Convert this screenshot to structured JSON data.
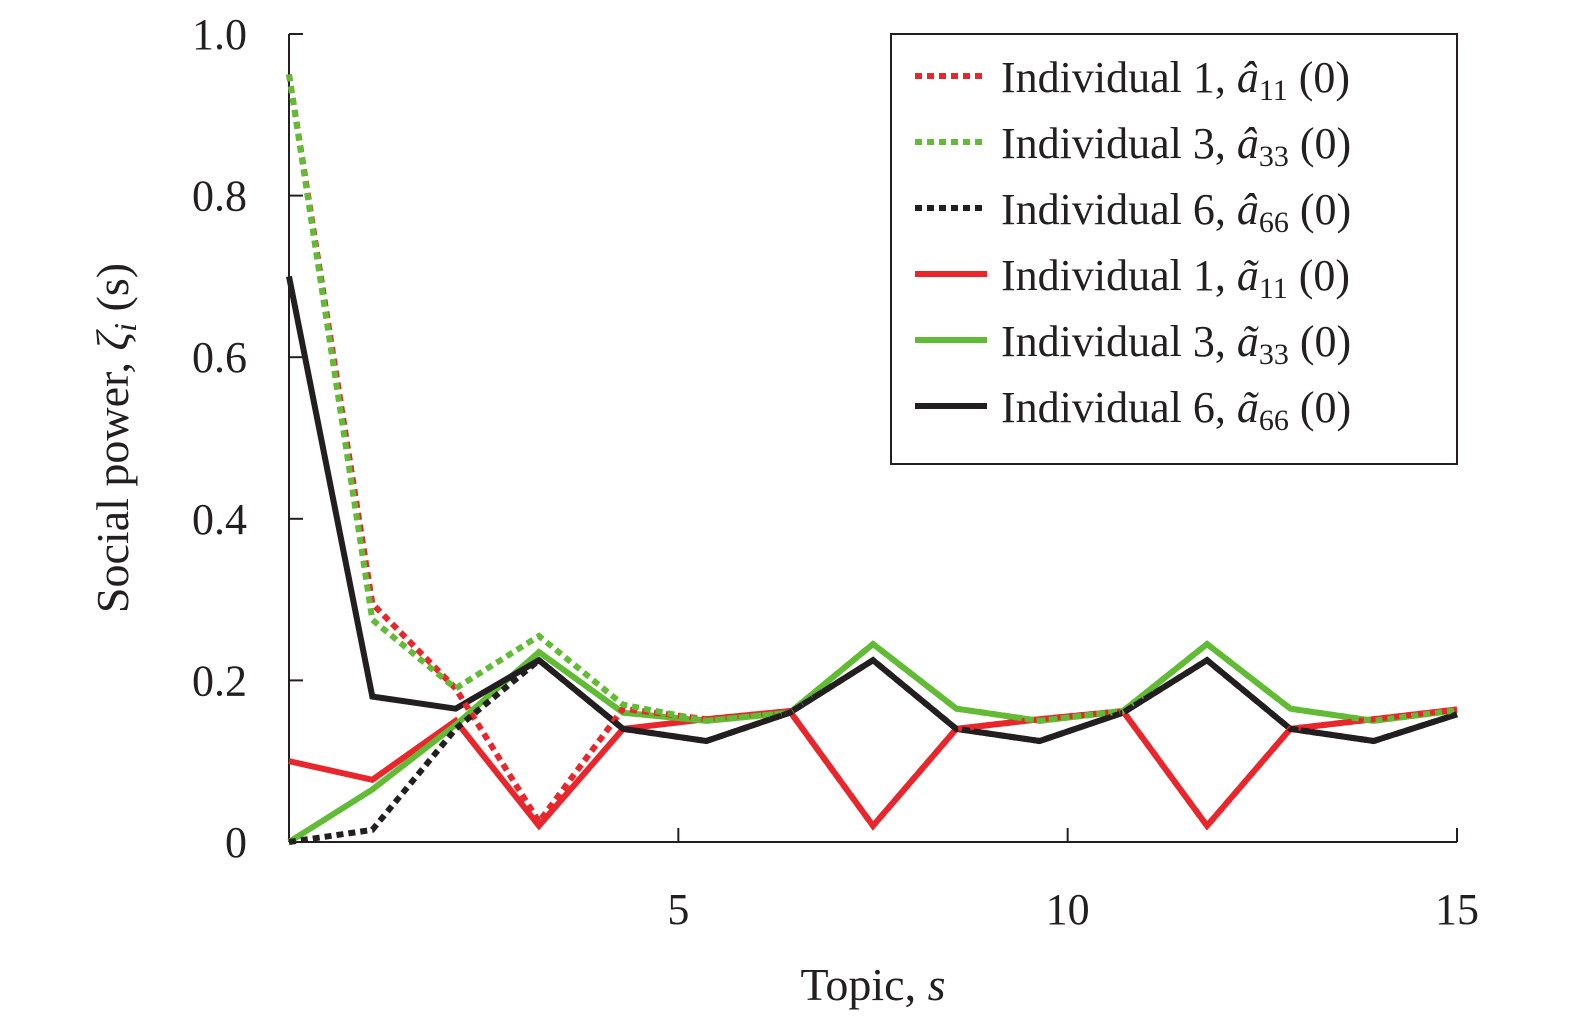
{
  "chart_data": {
    "type": "line",
    "xlabel": {
      "text": "Topic, ",
      "var": "s"
    },
    "ylabel": {
      "text": "Social power, ",
      "var": "ζ",
      "sub": "i",
      "suffix": " (s)"
    },
    "xlim": [
      0,
      15
    ],
    "ylim": [
      0,
      1.0
    ],
    "xticks": [
      5,
      10,
      15
    ],
    "xtick_labels": [
      "5",
      "10",
      "15"
    ],
    "yticks": [
      0,
      0.2,
      0.4,
      0.6,
      0.8,
      1.0
    ],
    "ytick_labels": [
      "0",
      "0.2",
      "0.4",
      "0.6",
      "0.8",
      "1.0"
    ],
    "grid": false,
    "legend_placement": "top-right",
    "x": [
      0,
      1.07,
      2.14,
      3.21,
      4.29,
      5.36,
      6.43,
      7.5,
      8.57,
      9.64,
      10.71,
      11.79,
      12.86,
      13.93,
      15
    ],
    "series": [
      {
        "name": "Individual 1, â11 (0)",
        "legend": {
          "prefix": "Individual 1, ",
          "sym": "â",
          "sub": "11",
          "suffix": " (0)"
        },
        "color": "#e8262b",
        "style": "dotted",
        "values": [
          0.95,
          0.295,
          0.19,
          0.025,
          0.165,
          0.152,
          0.162,
          0.02,
          0.14,
          0.152,
          0.162,
          0.02,
          0.14,
          0.152,
          0.164
        ]
      },
      {
        "name": "Individual 3, â33 (0)",
        "legend": {
          "prefix": "Individual 3, ",
          "sym": "â",
          "sub": "33",
          "suffix": " (0)"
        },
        "color": "#62bb35",
        "style": "dotted",
        "values": [
          0.95,
          0.275,
          0.19,
          0.255,
          0.17,
          0.15,
          0.16,
          0.245,
          0.165,
          0.15,
          0.162,
          0.245,
          0.165,
          0.15,
          0.163
        ]
      },
      {
        "name": "Individual 6, â66 (0)",
        "legend": {
          "prefix": "Individual 6, ",
          "sym": "â",
          "sub": "66",
          "suffix": " (0)"
        },
        "color": "#231f20",
        "style": "dotted",
        "values": [
          0,
          0.015,
          0.14,
          0.225,
          0.14,
          0.125,
          0.16,
          0.225,
          0.14,
          0.125,
          0.16,
          0.225,
          0.14,
          0.125,
          0.158
        ]
      },
      {
        "name": "Individual 1, ã11 (0)",
        "legend": {
          "prefix": "Individual 1, ",
          "sym": "ã",
          "sub": "11",
          "suffix": " (0)"
        },
        "color": "#e8262b",
        "style": "solid",
        "values": [
          0.1,
          0.077,
          0.15,
          0.02,
          0.14,
          0.152,
          0.162,
          0.02,
          0.14,
          0.152,
          0.162,
          0.02,
          0.14,
          0.152,
          0.164
        ]
      },
      {
        "name": "Individual 3, ã33 (0)",
        "legend": {
          "prefix": "Individual 3, ",
          "sym": "ã",
          "sub": "33",
          "suffix": " (0)"
        },
        "color": "#62bb35",
        "style": "solid",
        "values": [
          0,
          0.065,
          0.145,
          0.235,
          0.16,
          0.15,
          0.16,
          0.245,
          0.165,
          0.15,
          0.162,
          0.245,
          0.165,
          0.15,
          0.163
        ]
      },
      {
        "name": "Individual 6, ã66 (0)",
        "legend": {
          "prefix": "Individual 6, ",
          "sym": "ã",
          "sub": "66",
          "suffix": " (0)"
        },
        "color": "#231f20",
        "style": "solid",
        "values": [
          0.7,
          0.18,
          0.165,
          0.225,
          0.14,
          0.125,
          0.16,
          0.225,
          0.14,
          0.125,
          0.16,
          0.225,
          0.14,
          0.125,
          0.158
        ]
      }
    ]
  }
}
